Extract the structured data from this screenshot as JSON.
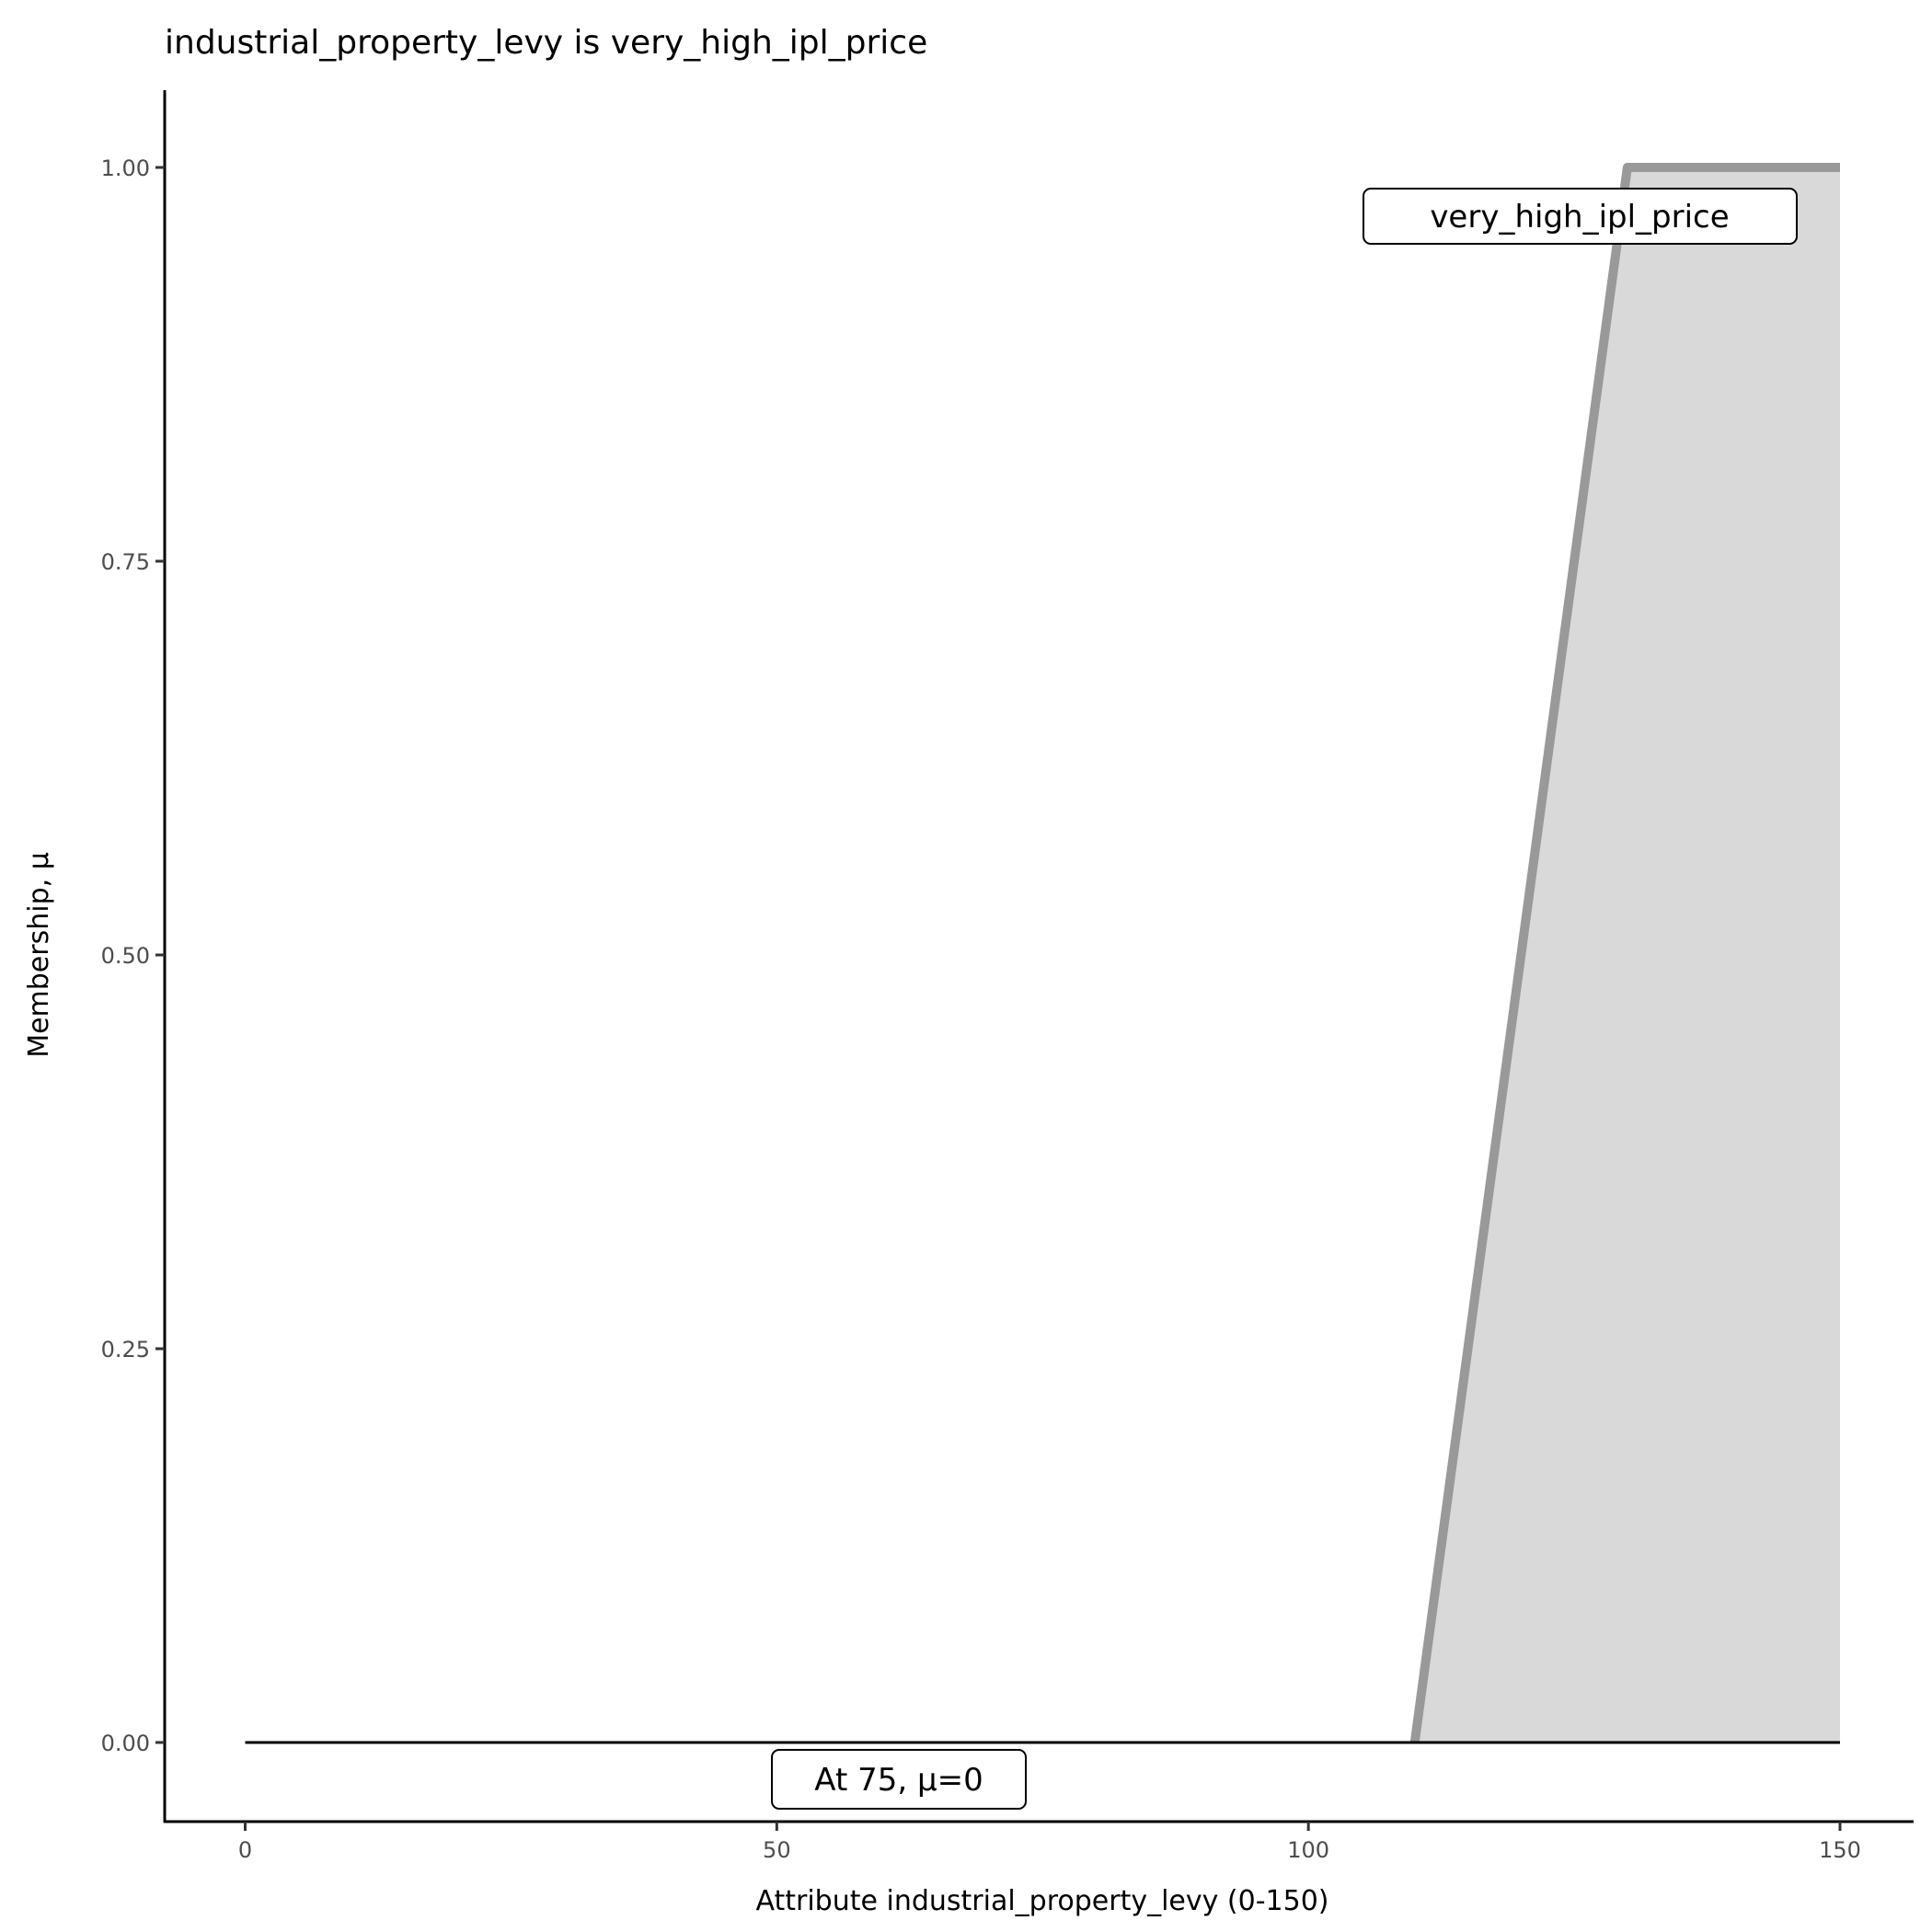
{
  "chart_data": {
    "type": "area",
    "title": "industrial_property_levy is very_high_ipl_price",
    "xlabel": "Attribute industrial_property_levy (0-150)",
    "ylabel": "Membership, μ",
    "xlim": [
      0,
      150
    ],
    "ylim": [
      0,
      1
    ],
    "x_ticks": [
      "0",
      "50",
      "100",
      "150"
    ],
    "y_ticks": [
      "0.00",
      "0.25",
      "0.50",
      "0.75",
      "1.00"
    ],
    "grid": false,
    "series": [
      {
        "name": "very_high_ipl_price",
        "x": [
          110,
          130,
          150
        ],
        "y": [
          0,
          1,
          1
        ],
        "color": "#999999",
        "fill": "#d9d9d9"
      }
    ],
    "baseline": {
      "x": [
        0,
        150
      ],
      "y": [
        0,
        0
      ],
      "color": "#000000"
    },
    "annotations": [
      {
        "text": "very_high_ipl_price"
      },
      {
        "text": "At 75, μ=0"
      }
    ]
  }
}
